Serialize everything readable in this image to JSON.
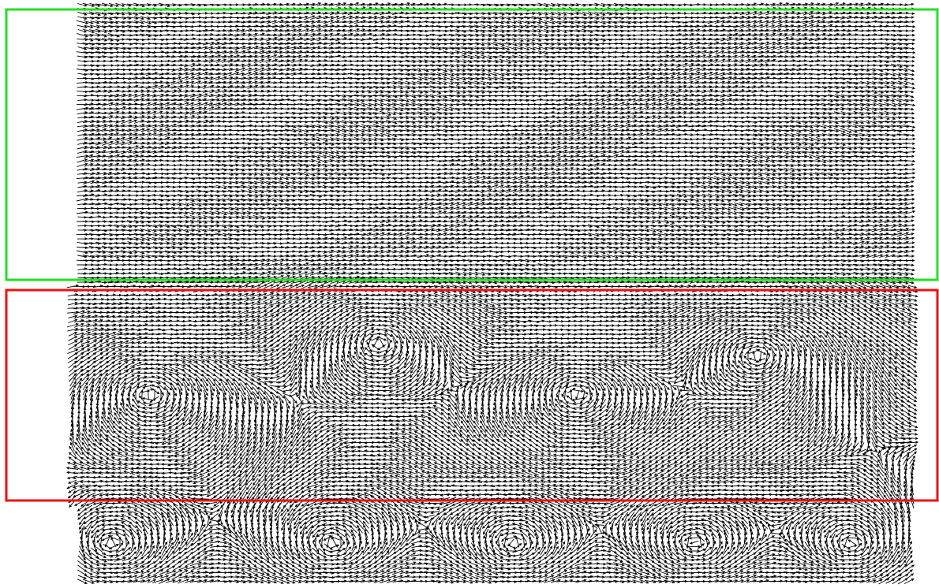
{
  "frames": [
    {
      "color": "#22e022"
    },
    {
      "color": "#ee1111"
    }
  ]
}
